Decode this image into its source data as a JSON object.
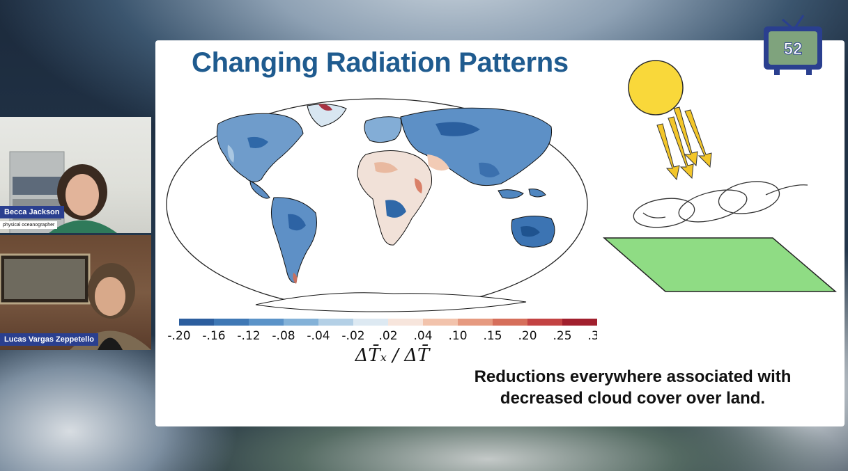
{
  "slide": {
    "title": "Changing Radiation Patterns",
    "caption_line1": "Reductions everywhere associated with",
    "caption_line2": "decreased cloud cover over land.",
    "colorbar": {
      "ticks": [
        "-.20",
        "-.16",
        "-.12",
        "-.08",
        "-.04",
        "-.02",
        ".02",
        ".04",
        ".10",
        ".15",
        ".20",
        ".25",
        ".30"
      ],
      "colors": [
        "#2c5e9e",
        "#3f78b5",
        "#5b93c8",
        "#84b2d8",
        "#b4d0e6",
        "#dde9f2",
        "#f7e5dc",
        "#f2c3ac",
        "#e69a80",
        "#d66f5b",
        "#c34343",
        "#a1202e"
      ],
      "label": "ΔT̄ₓ / ΔT̄"
    }
  },
  "channel_logo": {
    "number": "52"
  },
  "participants": [
    {
      "name": "Becca Jackson",
      "role": "physical oceanographer"
    },
    {
      "name": "Lucas Vargas Zeppetello"
    }
  ]
}
